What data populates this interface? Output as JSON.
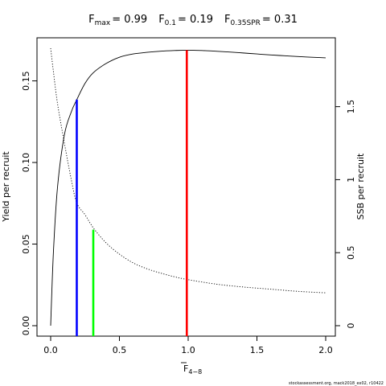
{
  "chart_data": {
    "type": "line",
    "title": {
      "fmax": {
        "main": "F",
        "sub": "max",
        "value": "= 0.99"
      },
      "f01": {
        "main": "F",
        "sub": "0.1",
        "value": "= 0.19"
      },
      "fspr": {
        "main": "F",
        "sub": "0.35SPR",
        "value": "= 0.31"
      }
    },
    "xlabel": {
      "main": "F",
      "sub": "4−8"
    },
    "ylabel": "Yield per recruit",
    "y2label": "SSB per recruit",
    "xlim": [
      0,
      2
    ],
    "ylim": [
      0,
      0.17
    ],
    "y2lim": [
      0,
      1.9
    ],
    "xticks": [
      "0.0",
      "0.5",
      "1.0",
      "1.5",
      "2.0"
    ],
    "yticks": [
      "0.00",
      "0.05",
      "0.10",
      "0.15"
    ],
    "y2ticks": [
      "0",
      "0.5",
      "1",
      "1.5"
    ],
    "series": [
      {
        "name": "",
        "axis": "left",
        "style": "solid",
        "color": "#000000",
        "x": [
          0,
          0.02,
          0.05,
          0.1,
          0.15,
          0.19,
          0.25,
          0.31,
          0.4,
          0.5,
          0.6,
          0.7,
          0.8,
          0.9,
          0.99,
          1.1,
          1.2,
          1.3,
          1.4,
          1.5,
          1.6,
          1.7,
          1.8,
          1.9,
          2.0
        ],
        "values": [
          0,
          0.045,
          0.085,
          0.117,
          0.131,
          0.1385,
          0.1485,
          0.155,
          0.1605,
          0.1645,
          0.1665,
          0.1675,
          0.1682,
          0.1686,
          0.1688,
          0.1686,
          0.1682,
          0.1677,
          0.1671,
          0.1665,
          0.1659,
          0.1654,
          0.1649,
          0.1645,
          0.1641
        ]
      },
      {
        "name": "",
        "axis": "right",
        "style": "dotted",
        "color": "#000000",
        "x": [
          0,
          0.02,
          0.05,
          0.1,
          0.15,
          0.19,
          0.25,
          0.31,
          0.4,
          0.5,
          0.6,
          0.7,
          0.8,
          0.9,
          1.0,
          1.2,
          1.4,
          1.6,
          1.8,
          2.0
        ],
        "values": [
          1.9,
          1.74,
          1.52,
          1.25,
          1.0,
          0.84,
          0.76,
          0.67,
          0.57,
          0.49,
          0.43,
          0.39,
          0.36,
          0.335,
          0.315,
          0.285,
          0.265,
          0.25,
          0.235,
          0.225
        ]
      }
    ],
    "reference_lines": [
      {
        "label": "F0.1",
        "x": 0.19,
        "yield": 0.1385,
        "color": "#0000ff"
      },
      {
        "label": "F0.35SPR",
        "x": 0.31,
        "yield": 0.0588,
        "color": "#00ff00"
      },
      {
        "label": "Fmax",
        "x": 0.99,
        "yield": 0.1688,
        "color": "#ff0000"
      }
    ],
    "credit": "stockassessment.org, mack2018_ex02, r10422"
  }
}
